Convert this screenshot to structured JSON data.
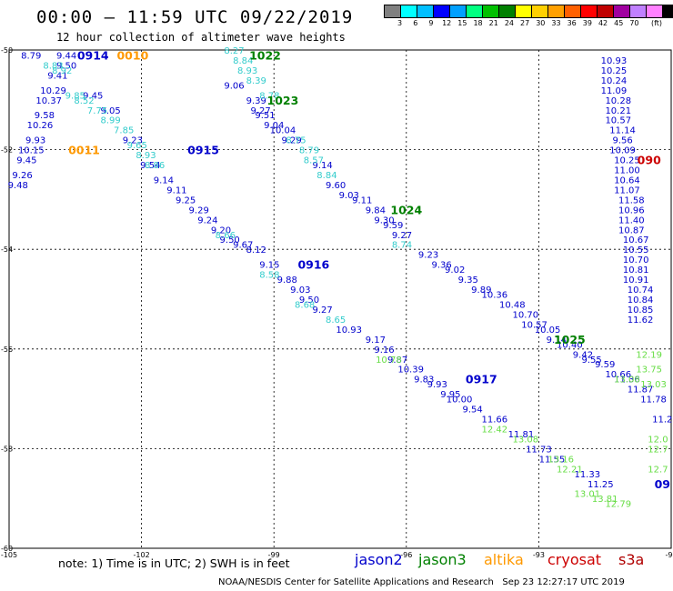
{
  "title": "00:00 – 11:59 UTC 09/22/2019",
  "subtitle": "12 hour collection of altimeter wave heights",
  "scale": {
    "colors": [
      "#808080",
      "#00ffff",
      "#00bfff",
      "#0000ff",
      "#00a0ff",
      "#00ff80",
      "#00c000",
      "#008000",
      "#ffff00",
      "#ffd000",
      "#ffa000",
      "#ff6000",
      "#ff0000",
      "#c00000",
      "#a000a0",
      "#c080ff",
      "#ff80ff",
      "#000000"
    ],
    "labels": [
      "3",
      "6",
      "9",
      "12",
      "15",
      "18",
      "21",
      "24",
      "27",
      "30",
      "33",
      "36",
      "39",
      "42",
      "45",
      "70"
    ],
    "unit": "(ft)"
  },
  "axes": {
    "x_ticks": [
      "-105",
      "-102",
      "-99",
      "-96",
      "-93",
      "-90"
    ],
    "y_ticks": [
      "-50",
      "-52",
      "-54",
      "-56",
      "-58",
      "-60"
    ]
  },
  "footer": {
    "note": "note: 1) Time is in UTC; 2) SWH is in feet",
    "satellites": [
      {
        "name": "jason2",
        "color": "#0000cc"
      },
      {
        "name": "jason3",
        "color": "#008000"
      },
      {
        "name": "altika",
        "color": "#ff9900"
      },
      {
        "name": "cryosat",
        "color": "#cc0000"
      },
      {
        "name": "s3a",
        "color": "#b00000"
      }
    ],
    "credit": "NOAA/NESDIS Center for Satellite Applications and Research   Sep 23 12:27:17 UTC 2019"
  },
  "chart_data": {
    "type": "scatter",
    "xlim": [
      -105,
      -90
    ],
    "ylim": [
      -60,
      -50
    ],
    "time_labels": [
      {
        "text": "0914",
        "lon": -103.1,
        "lat": -50.1,
        "color": "#0000cc"
      },
      {
        "text": "0010",
        "lon": -102.2,
        "lat": -50.1,
        "color": "#ff9900"
      },
      {
        "text": "1022",
        "lon": -99.2,
        "lat": -50.1,
        "color": "#008000"
      },
      {
        "text": "1023",
        "lon": -98.8,
        "lat": -51.0,
        "color": "#008000"
      },
      {
        "text": "0011",
        "lon": -103.3,
        "lat": -52.0,
        "color": "#ff9900"
      },
      {
        "text": "0915",
        "lon": -100.6,
        "lat": -52.0,
        "color": "#0000cc"
      },
      {
        "text": "1024",
        "lon": -96.0,
        "lat": -53.2,
        "color": "#008000"
      },
      {
        "text": "0916",
        "lon": -98.1,
        "lat": -54.3,
        "color": "#0000cc"
      },
      {
        "text": "1025",
        "lon": -92.3,
        "lat": -55.8,
        "color": "#008000"
      },
      {
        "text": "0917",
        "lon": -94.3,
        "lat": -56.6,
        "color": "#0000cc"
      },
      {
        "text": "090",
        "lon": -90.5,
        "lat": -52.2,
        "color": "#cc0000"
      },
      {
        "text": "09",
        "lon": -90.2,
        "lat": -58.7,
        "color": "#0000cc"
      }
    ],
    "tracks": [
      {
        "color": "#0000cc",
        "points": [
          [
            "8.79",
            -104.5,
            -50.1
          ],
          [
            "9.44",
            -103.7,
            -50.1
          ],
          [
            "9.50",
            -103.7,
            -50.3
          ],
          [
            "9.41",
            -103.9,
            -50.5
          ],
          [
            "10.29",
            -104.0,
            -50.8
          ],
          [
            "10.37",
            -104.1,
            -51.0
          ],
          [
            "9.58",
            -104.2,
            -51.3
          ],
          [
            "10.26",
            -104.3,
            -51.5
          ],
          [
            "9.93",
            -104.4,
            -51.8
          ],
          [
            "10.15",
            -104.5,
            -52.0
          ],
          [
            "9.45",
            -104.6,
            -52.2
          ],
          [
            "9.26",
            -104.7,
            -52.5
          ],
          [
            "9.48",
            -104.8,
            -52.7
          ],
          [
            "9.45",
            -103.1,
            -50.9
          ],
          [
            "9.05",
            -102.7,
            -51.2
          ],
          [
            "9.23",
            -102.2,
            -51.8
          ],
          [
            "9.54",
            -101.8,
            -52.3
          ],
          [
            "9.14",
            -101.5,
            -52.6
          ],
          [
            "9.11",
            -101.2,
            -52.8
          ],
          [
            "9.25",
            -101.0,
            -53.0
          ],
          [
            "9.29",
            -100.7,
            -53.2
          ],
          [
            "9.24",
            -100.5,
            -53.4
          ],
          [
            "9.20",
            -100.2,
            -53.6
          ],
          [
            "9.50",
            -100.0,
            -53.8
          ],
          [
            "9.67",
            -99.7,
            -53.9
          ],
          [
            "8.12",
            -99.4,
            -54.0
          ],
          [
            "9.15",
            -99.1,
            -54.3
          ],
          [
            "9.88",
            -98.7,
            -54.6
          ],
          [
            "9.03",
            -98.4,
            -54.8
          ],
          [
            "9.50",
            -98.2,
            -55.0
          ],
          [
            "9.27",
            -97.9,
            -55.2
          ],
          [
            "10.93",
            -97.3,
            -55.6
          ],
          [
            "9.17",
            -96.7,
            -55.8
          ],
          [
            "9.16",
            -96.5,
            -56.0
          ],
          [
            "9.87",
            -96.2,
            -56.2
          ],
          [
            "10.39",
            -95.9,
            -56.4
          ],
          [
            "9.83",
            -95.6,
            -56.6
          ],
          [
            "9.93",
            -95.3,
            -56.7
          ],
          [
            "9.95",
            -95.0,
            -56.9
          ],
          [
            "10.00",
            -94.8,
            -57.0
          ],
          [
            "9.54",
            -94.5,
            -57.2
          ],
          [
            "11.66",
            -94.0,
            -57.4
          ],
          [
            "11.81",
            -93.4,
            -57.7
          ],
          [
            "11.73",
            -93.0,
            -58.0
          ],
          [
            "11.55",
            -92.7,
            -58.2
          ],
          [
            "11.33",
            -91.9,
            -58.5
          ],
          [
            "11.25",
            -91.6,
            -58.7
          ],
          [
            "9.06",
            -99.9,
            -50.7
          ],
          [
            "9.39",
            -99.4,
            -51.0
          ],
          [
            "9.27",
            -99.3,
            -51.2
          ],
          [
            "9.51",
            -99.2,
            -51.3
          ],
          [
            "9.04",
            -99.0,
            -51.5
          ],
          [
            "10.04",
            -98.8,
            -51.6
          ],
          [
            "9.29",
            -98.6,
            -51.8
          ],
          [
            "9.14",
            -97.9,
            -52.3
          ],
          [
            "9.60",
            -97.6,
            -52.7
          ],
          [
            "9.03",
            -97.3,
            -52.9
          ],
          [
            "9.11",
            -97.0,
            -53.0
          ],
          [
            "9.84",
            -96.7,
            -53.2
          ],
          [
            "9.30",
            -96.5,
            -53.4
          ],
          [
            "9.59",
            -96.3,
            -53.5
          ],
          [
            "9.27",
            -96.1,
            -53.7
          ],
          [
            "9.23",
            -95.5,
            -54.1
          ],
          [
            "9.36",
            -95.2,
            -54.3
          ],
          [
            "9.02",
            -94.9,
            -54.4
          ],
          [
            "9.35",
            -94.6,
            -54.6
          ],
          [
            "9.89",
            -94.3,
            -54.8
          ],
          [
            "10.36",
            -94.0,
            -54.9
          ],
          [
            "10.48",
            -93.6,
            -55.1
          ],
          [
            "10.70",
            -93.3,
            -55.3
          ],
          [
            "10.57",
            -93.1,
            -55.5
          ],
          [
            "10.05",
            -92.8,
            -55.6
          ],
          [
            "9.14",
            -92.6,
            -55.8
          ],
          [
            "10.40",
            -92.3,
            -55.9
          ],
          [
            "9.42",
            -92.0,
            -56.1
          ],
          [
            "9.55",
            -91.8,
            -56.2
          ],
          [
            "9.59",
            -91.5,
            -56.3
          ],
          [
            "10.66",
            -91.2,
            -56.5
          ],
          [
            "11.36",
            -91.0,
            -56.6
          ],
          [
            "11.87",
            -90.7,
            -56.8
          ],
          [
            "11.78",
            -90.4,
            -57.0
          ],
          [
            "11.2",
            -90.2,
            -57.4
          ],
          [
            "10.93",
            -91.3,
            -50.2
          ],
          [
            "10.25",
            -91.3,
            -50.4
          ],
          [
            "10.24",
            -91.3,
            -50.6
          ],
          [
            "11.09",
            -91.3,
            -50.8
          ],
          [
            "10.28",
            -91.2,
            -51.0
          ],
          [
            "10.21",
            -91.2,
            -51.2
          ],
          [
            "10.57",
            -91.2,
            -51.4
          ],
          [
            "11.14",
            -91.1,
            -51.6
          ],
          [
            "9.56",
            -91.1,
            -51.8
          ],
          [
            "10.09",
            -91.1,
            -52.0
          ],
          [
            "10.25",
            -91.0,
            -52.2
          ],
          [
            "11.00",
            -91.0,
            -52.4
          ],
          [
            "10.64",
            -91.0,
            -52.6
          ],
          [
            "11.07",
            -91.0,
            -52.8
          ],
          [
            "11.58",
            -90.9,
            -53.0
          ],
          [
            "10.96",
            -90.9,
            -53.2
          ],
          [
            "11.40",
            -90.9,
            -53.4
          ],
          [
            "10.87",
            -90.9,
            -53.6
          ],
          [
            "10.67",
            -90.8,
            -53.8
          ],
          [
            "10.55",
            -90.8,
            -54.0
          ],
          [
            "10.70",
            -90.8,
            -54.2
          ],
          [
            "10.81",
            -90.8,
            -54.4
          ],
          [
            "10.91",
            -90.8,
            -54.6
          ],
          [
            "10.74",
            -90.7,
            -54.8
          ],
          [
            "10.84",
            -90.7,
            -55.0
          ],
          [
            "10.85",
            -90.7,
            -55.2
          ],
          [
            "11.62",
            -90.7,
            -55.4
          ]
        ]
      },
      {
        "color": "#33cccc",
        "points": [
          [
            "8.83",
            -104.0,
            -50.3
          ],
          [
            "8.92",
            -103.8,
            -50.4
          ],
          [
            "9.85",
            -103.5,
            -50.9
          ],
          [
            "8.52",
            -103.3,
            -51.0
          ],
          [
            "7.75",
            -103.0,
            -51.2
          ],
          [
            "8.99",
            -102.7,
            -51.4
          ],
          [
            "7.85",
            -102.4,
            -51.6
          ],
          [
            "9.65",
            -102.1,
            -51.9
          ],
          [
            "8.93",
            -101.9,
            -52.1
          ],
          [
            "8.86",
            -101.7,
            -52.3
          ],
          [
            "8.66",
            -100.1,
            -53.7
          ],
          [
            "8.58",
            -99.1,
            -54.5
          ],
          [
            "8.68",
            -98.3,
            -55.1
          ],
          [
            "8.65",
            -97.6,
            -55.4
          ],
          [
            "8.27",
            -99.9,
            -50.0
          ],
          [
            "8.84",
            -99.7,
            -50.2
          ],
          [
            "8.93",
            -99.6,
            -50.4
          ],
          [
            "8.39",
            -99.4,
            -50.6
          ],
          [
            "8.78",
            -99.1,
            -50.9
          ],
          [
            "8.75",
            -98.5,
            -51.8
          ],
          [
            "8.79",
            -98.2,
            -52.0
          ],
          [
            "8.57",
            -98.1,
            -52.2
          ],
          [
            "8.84",
            -97.8,
            -52.5
          ],
          [
            "8.74",
            -96.1,
            -53.9
          ]
        ]
      },
      {
        "color": "#66dd44",
        "points": [
          [
            "10.78",
            -96.4,
            -56.2
          ],
          [
            "12.42",
            -94.0,
            -57.6
          ],
          [
            "13.08",
            -93.3,
            -57.8
          ],
          [
            "13.16",
            -92.5,
            -58.2
          ],
          [
            "12.21",
            -92.3,
            -58.4
          ],
          [
            "13.01",
            -91.9,
            -58.9
          ],
          [
            "13.81",
            -91.5,
            -59.0
          ],
          [
            "12.79",
            -91.2,
            -59.1
          ],
          [
            "12.19",
            -90.5,
            -56.1
          ],
          [
            "13.75",
            -90.5,
            -56.4
          ],
          [
            "13.08",
            -91.0,
            -56.6
          ],
          [
            "13.03",
            -90.4,
            -56.7
          ],
          [
            "12.0",
            -90.3,
            -57.8
          ],
          [
            "12.7",
            -90.3,
            -58.0
          ],
          [
            "12.7",
            -90.3,
            -58.4
          ]
        ]
      }
    ]
  }
}
